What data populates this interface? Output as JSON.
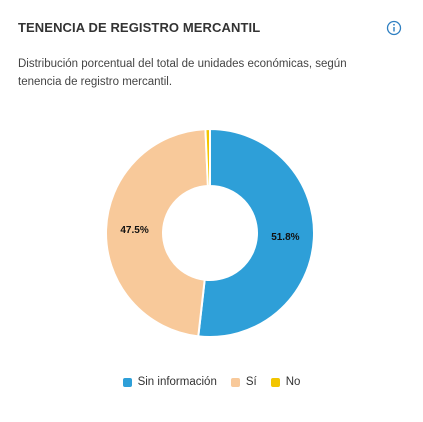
{
  "chart_data": {
    "type": "pie",
    "title": "TENENCIA DE REGISTRO MERCANTIL",
    "subtitle": "Distribución porcentual del total de unidades económicas, según tenencia de registro mercantil.",
    "categories": [
      "Sin información",
      "Sí",
      "No"
    ],
    "values": [
      51.8,
      47.5,
      0.7
    ],
    "value_labels": [
      "51.8%",
      "47.5%",
      null
    ],
    "colors": [
      "#2e9fd8",
      "#f8c99a",
      "#f2c500"
    ],
    "legend": "bottom"
  }
}
